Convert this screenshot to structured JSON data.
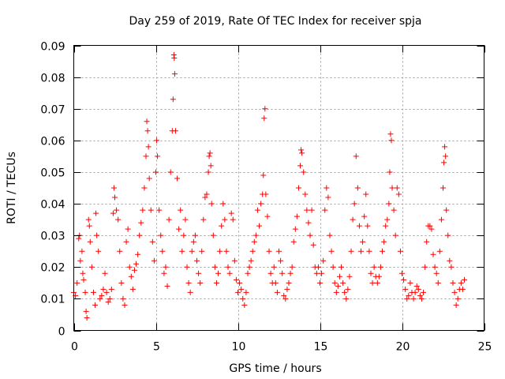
{
  "chart_data": {
    "type": "scatter",
    "title": "Day 259 of 2019, Rate Of TEC Index for receiver spja",
    "xlabel": "GPS time / hours",
    "ylabel": "ROTI / TECUs",
    "xlim": [
      0,
      25
    ],
    "ylim": [
      0,
      0.09
    ],
    "xticks": [
      "0",
      "5",
      "10",
      "15",
      "20",
      "25"
    ],
    "yticks": [
      "0",
      "0.01",
      "0.02",
      "0.03",
      "0.04",
      "0.05",
      "0.06",
      "0.07",
      "0.08",
      "0.09"
    ],
    "grid": true,
    "marker": "+",
    "color": "#ff0000",
    "series": [
      {
        "name": "ROTI",
        "points": [
          [
            0.0,
            0.012
          ],
          [
            0.1,
            0.011
          ],
          [
            0.2,
            0.015
          ],
          [
            0.3,
            0.029
          ],
          [
            0.35,
            0.03
          ],
          [
            0.4,
            0.022
          ],
          [
            0.5,
            0.025
          ],
          [
            0.55,
            0.018
          ],
          [
            0.6,
            0.016
          ],
          [
            0.7,
            0.012
          ],
          [
            0.75,
            0.006
          ],
          [
            0.8,
            0.004
          ],
          [
            0.9,
            0.035
          ],
          [
            0.95,
            0.033
          ],
          [
            1.0,
            0.028
          ],
          [
            1.1,
            0.02
          ],
          [
            1.2,
            0.012
          ],
          [
            1.3,
            0.008
          ],
          [
            1.35,
            0.037
          ],
          [
            1.4,
            0.03
          ],
          [
            1.5,
            0.025
          ],
          [
            1.6,
            0.01
          ],
          [
            1.7,
            0.011
          ],
          [
            1.8,
            0.013
          ],
          [
            1.9,
            0.018
          ],
          [
            2.0,
            0.012
          ],
          [
            2.1,
            0.009
          ],
          [
            2.2,
            0.01
          ],
          [
            2.3,
            0.013
          ],
          [
            2.4,
            0.037
          ],
          [
            2.45,
            0.045
          ],
          [
            2.5,
            0.042
          ],
          [
            2.6,
            0.038
          ],
          [
            2.7,
            0.035
          ],
          [
            2.8,
            0.025
          ],
          [
            2.9,
            0.015
          ],
          [
            3.0,
            0.01
          ],
          [
            3.1,
            0.008
          ],
          [
            3.2,
            0.028
          ],
          [
            3.3,
            0.032
          ],
          [
            3.4,
            0.02
          ],
          [
            3.5,
            0.017
          ],
          [
            3.6,
            0.013
          ],
          [
            3.7,
            0.019
          ],
          [
            3.8,
            0.021
          ],
          [
            3.9,
            0.024
          ],
          [
            4.0,
            0.03
          ],
          [
            4.1,
            0.034
          ],
          [
            4.2,
            0.038
          ],
          [
            4.3,
            0.045
          ],
          [
            4.4,
            0.055
          ],
          [
            4.45,
            0.066
          ],
          [
            4.5,
            0.063
          ],
          [
            4.55,
            0.058
          ],
          [
            4.6,
            0.048
          ],
          [
            4.7,
            0.038
          ],
          [
            4.8,
            0.028
          ],
          [
            4.9,
            0.022
          ],
          [
            5.0,
            0.05
          ],
          [
            5.05,
            0.06
          ],
          [
            5.1,
            0.055
          ],
          [
            5.2,
            0.038
          ],
          [
            5.3,
            0.03
          ],
          [
            5.4,
            0.025
          ],
          [
            5.5,
            0.018
          ],
          [
            5.6,
            0.02
          ],
          [
            5.7,
            0.014
          ],
          [
            5.8,
            0.035
          ],
          [
            5.9,
            0.05
          ],
          [
            6.0,
            0.063
          ],
          [
            6.05,
            0.073
          ],
          [
            6.1,
            0.087
          ],
          [
            6.12,
            0.086
          ],
          [
            6.15,
            0.081
          ],
          [
            6.2,
            0.063
          ],
          [
            6.3,
            0.048
          ],
          [
            6.4,
            0.032
          ],
          [
            6.5,
            0.038
          ],
          [
            6.6,
            0.025
          ],
          [
            6.7,
            0.03
          ],
          [
            6.8,
            0.035
          ],
          [
            6.9,
            0.02
          ],
          [
            7.0,
            0.015
          ],
          [
            7.1,
            0.012
          ],
          [
            7.2,
            0.025
          ],
          [
            7.3,
            0.028
          ],
          [
            7.4,
            0.03
          ],
          [
            7.5,
            0.022
          ],
          [
            7.6,
            0.018
          ],
          [
            7.7,
            0.015
          ],
          [
            7.8,
            0.025
          ],
          [
            7.9,
            0.035
          ],
          [
            8.0,
            0.042
          ],
          [
            8.1,
            0.043
          ],
          [
            8.2,
            0.05
          ],
          [
            8.25,
            0.055
          ],
          [
            8.3,
            0.056
          ],
          [
            8.35,
            0.052
          ],
          [
            8.4,
            0.04
          ],
          [
            8.5,
            0.03
          ],
          [
            8.6,
            0.02
          ],
          [
            8.7,
            0.015
          ],
          [
            8.8,
            0.018
          ],
          [
            8.9,
            0.025
          ],
          [
            9.0,
            0.033
          ],
          [
            9.1,
            0.04
          ],
          [
            9.2,
            0.035
          ],
          [
            9.3,
            0.025
          ],
          [
            9.4,
            0.02
          ],
          [
            9.5,
            0.018
          ],
          [
            9.6,
            0.037
          ],
          [
            9.7,
            0.035
          ],
          [
            9.8,
            0.022
          ],
          [
            9.9,
            0.016
          ],
          [
            10.0,
            0.012
          ],
          [
            10.1,
            0.015
          ],
          [
            10.2,
            0.013
          ],
          [
            10.3,
            0.01
          ],
          [
            10.4,
            0.008
          ],
          [
            10.5,
            0.012
          ],
          [
            10.6,
            0.018
          ],
          [
            10.7,
            0.02
          ],
          [
            10.8,
            0.022
          ],
          [
            10.9,
            0.025
          ],
          [
            11.0,
            0.028
          ],
          [
            11.1,
            0.03
          ],
          [
            11.2,
            0.038
          ],
          [
            11.3,
            0.033
          ],
          [
            11.4,
            0.04
          ],
          [
            11.5,
            0.043
          ],
          [
            11.55,
            0.049
          ],
          [
            11.6,
            0.067
          ],
          [
            11.65,
            0.07
          ],
          [
            11.7,
            0.043
          ],
          [
            11.8,
            0.036
          ],
          [
            11.9,
            0.025
          ],
          [
            12.0,
            0.018
          ],
          [
            12.1,
            0.015
          ],
          [
            12.2,
            0.02
          ],
          [
            12.3,
            0.015
          ],
          [
            12.4,
            0.012
          ],
          [
            12.5,
            0.025
          ],
          [
            12.6,
            0.022
          ],
          [
            12.7,
            0.018
          ],
          [
            12.8,
            0.011
          ],
          [
            12.9,
            0.01
          ],
          [
            13.0,
            0.013
          ],
          [
            13.1,
            0.015
          ],
          [
            13.2,
            0.018
          ],
          [
            13.3,
            0.02
          ],
          [
            13.4,
            0.028
          ],
          [
            13.5,
            0.032
          ],
          [
            13.6,
            0.036
          ],
          [
            13.7,
            0.045
          ],
          [
            13.8,
            0.052
          ],
          [
            13.85,
            0.057
          ],
          [
            13.9,
            0.056
          ],
          [
            14.0,
            0.05
          ],
          [
            14.1,
            0.043
          ],
          [
            14.2,
            0.038
          ],
          [
            14.3,
            0.034
          ],
          [
            14.4,
            0.03
          ],
          [
            14.5,
            0.038
          ],
          [
            14.6,
            0.027
          ],
          [
            14.7,
            0.02
          ],
          [
            14.8,
            0.018
          ],
          [
            14.9,
            0.02
          ],
          [
            15.0,
            0.015
          ],
          [
            15.1,
            0.018
          ],
          [
            15.2,
            0.022
          ],
          [
            15.3,
            0.038
          ],
          [
            15.4,
            0.045
          ],
          [
            15.5,
            0.042
          ],
          [
            15.6,
            0.03
          ],
          [
            15.7,
            0.025
          ],
          [
            15.8,
            0.02
          ],
          [
            15.9,
            0.015
          ],
          [
            16.0,
            0.012
          ],
          [
            16.1,
            0.014
          ],
          [
            16.2,
            0.017
          ],
          [
            16.3,
            0.02
          ],
          [
            16.4,
            0.015
          ],
          [
            16.5,
            0.012
          ],
          [
            16.6,
            0.01
          ],
          [
            16.7,
            0.013
          ],
          [
            16.8,
            0.017
          ],
          [
            16.9,
            0.025
          ],
          [
            17.0,
            0.035
          ],
          [
            17.1,
            0.04
          ],
          [
            17.2,
            0.055
          ],
          [
            17.3,
            0.045
          ],
          [
            17.4,
            0.033
          ],
          [
            17.5,
            0.025
          ],
          [
            17.6,
            0.028
          ],
          [
            17.7,
            0.036
          ],
          [
            17.8,
            0.043
          ],
          [
            17.9,
            0.033
          ],
          [
            18.0,
            0.025
          ],
          [
            18.1,
            0.018
          ],
          [
            18.2,
            0.015
          ],
          [
            18.3,
            0.02
          ],
          [
            18.4,
            0.017
          ],
          [
            18.5,
            0.015
          ],
          [
            18.6,
            0.017
          ],
          [
            18.7,
            0.02
          ],
          [
            18.8,
            0.025
          ],
          [
            18.9,
            0.028
          ],
          [
            19.0,
            0.033
          ],
          [
            19.1,
            0.035
          ],
          [
            19.2,
            0.04
          ],
          [
            19.25,
            0.05
          ],
          [
            19.3,
            0.062
          ],
          [
            19.35,
            0.06
          ],
          [
            19.4,
            0.045
          ],
          [
            19.5,
            0.038
          ],
          [
            19.6,
            0.03
          ],
          [
            19.7,
            0.045
          ],
          [
            19.8,
            0.043
          ],
          [
            19.9,
            0.025
          ],
          [
            20.0,
            0.018
          ],
          [
            20.1,
            0.016
          ],
          [
            20.2,
            0.013
          ],
          [
            20.3,
            0.01
          ],
          [
            20.4,
            0.011
          ],
          [
            20.5,
            0.015
          ],
          [
            20.6,
            0.012
          ],
          [
            20.7,
            0.01
          ],
          [
            20.8,
            0.012
          ],
          [
            20.9,
            0.014
          ],
          [
            21.0,
            0.013
          ],
          [
            21.1,
            0.011
          ],
          [
            21.2,
            0.01
          ],
          [
            21.3,
            0.012
          ],
          [
            21.4,
            0.02
          ],
          [
            21.5,
            0.028
          ],
          [
            21.6,
            0.033
          ],
          [
            21.7,
            0.033
          ],
          [
            21.8,
            0.032
          ],
          [
            21.9,
            0.024
          ],
          [
            22.0,
            0.02
          ],
          [
            22.1,
            0.018
          ],
          [
            22.2,
            0.015
          ],
          [
            22.3,
            0.025
          ],
          [
            22.4,
            0.035
          ],
          [
            22.5,
            0.045
          ],
          [
            22.55,
            0.053
          ],
          [
            22.6,
            0.058
          ],
          [
            22.65,
            0.055
          ],
          [
            22.7,
            0.038
          ],
          [
            22.8,
            0.03
          ],
          [
            22.9,
            0.022
          ],
          [
            23.0,
            0.02
          ],
          [
            23.1,
            0.015
          ],
          [
            23.2,
            0.012
          ],
          [
            23.3,
            0.008
          ],
          [
            23.4,
            0.01
          ],
          [
            23.5,
            0.013
          ],
          [
            23.6,
            0.015
          ],
          [
            23.7,
            0.013
          ],
          [
            23.8,
            0.016
          ]
        ]
      }
    ]
  }
}
